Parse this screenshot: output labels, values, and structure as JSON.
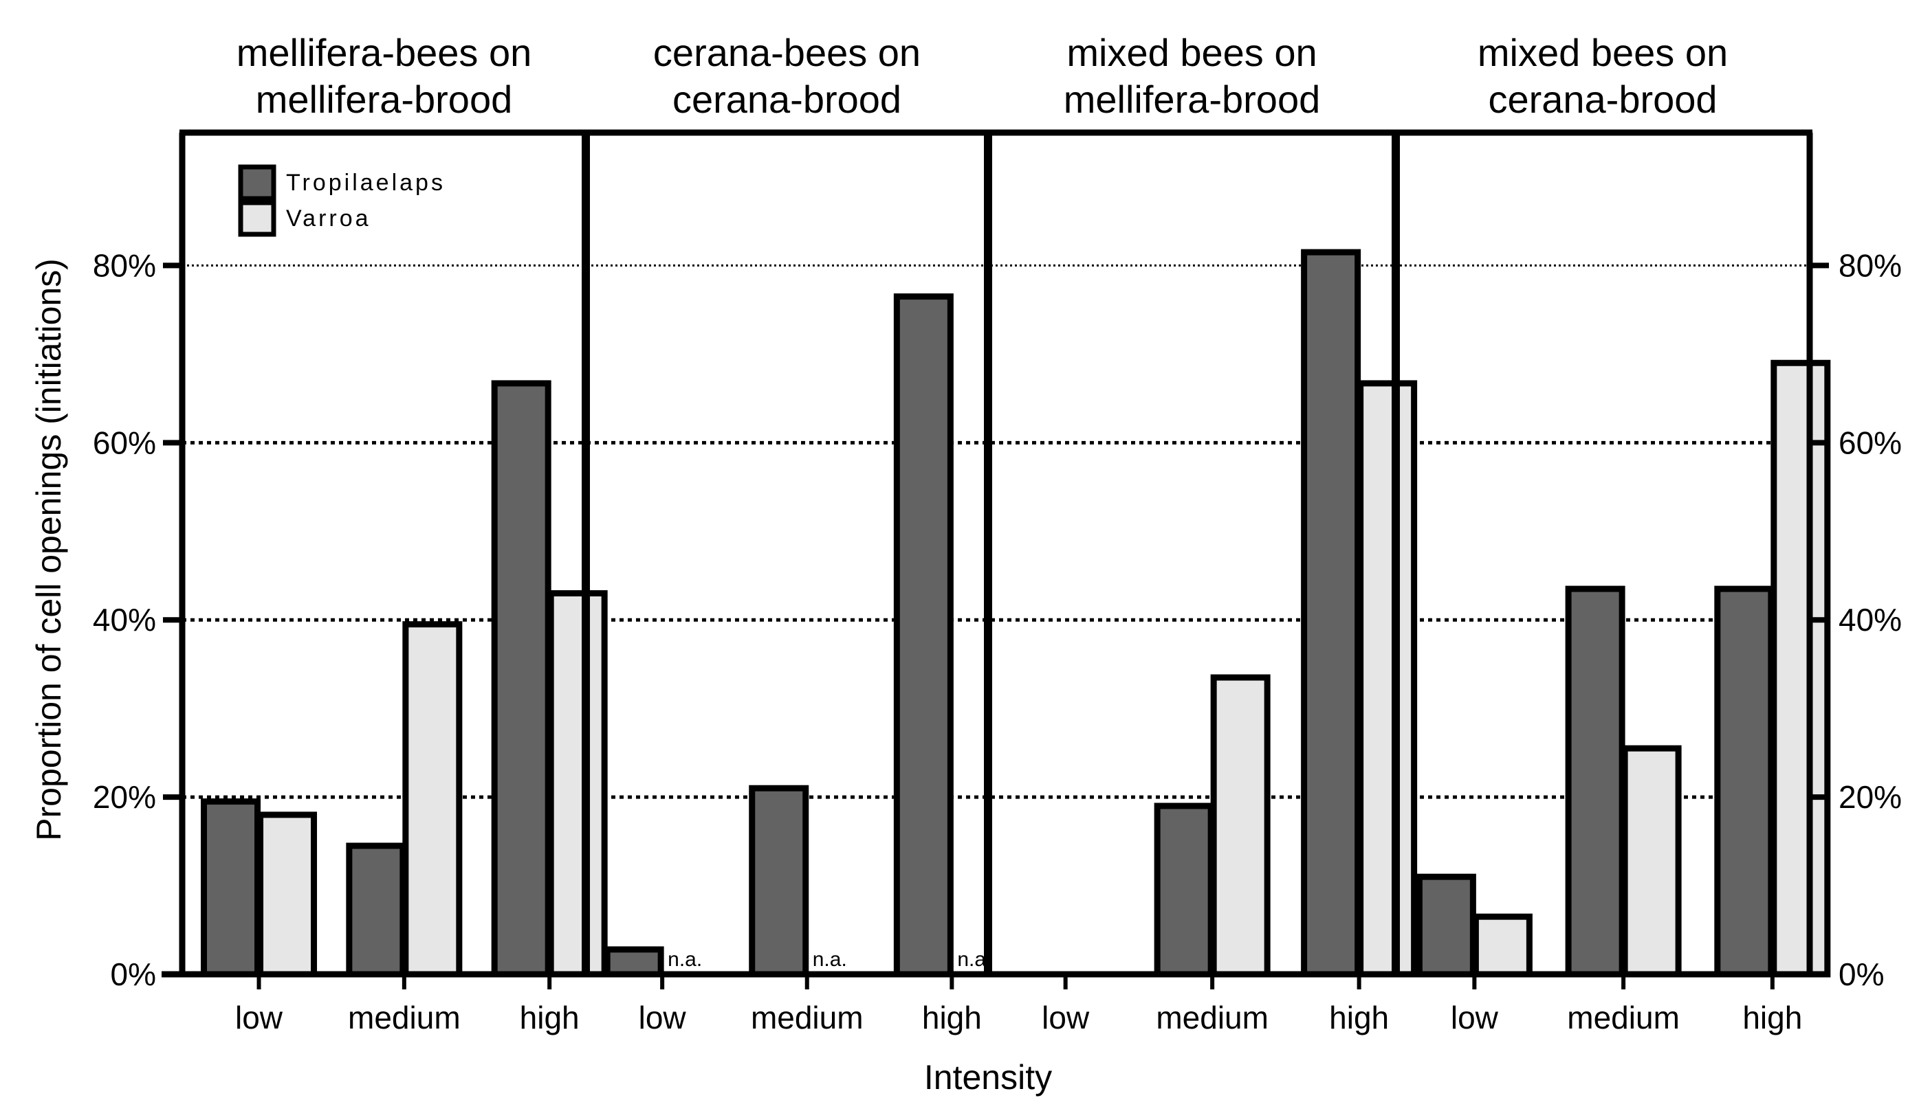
{
  "chart_data": {
    "type": "bar",
    "ylabel": "Proportion of cell openings (initiations)",
    "xlabel": "Intensity",
    "ylim": [
      0,
      95
    ],
    "yticks": [
      0,
      20,
      40,
      60,
      80
    ],
    "ytick_labels": [
      "0%",
      "20%",
      "40%",
      "60%",
      "80%"
    ],
    "categories": [
      "low",
      "medium",
      "high"
    ],
    "legend": [
      {
        "name": "Tropilaelaps",
        "color": "#636363"
      },
      {
        "name": "Varroa",
        "color": "#e6e6e6"
      }
    ],
    "na_label": "n.a.",
    "panels": [
      {
        "title_lines": [
          "mellifera-bees on",
          "mellifera-brood"
        ],
        "series": [
          {
            "name": "Tropilaelaps",
            "values": [
              19.5,
              14.5,
              66.7
            ]
          },
          {
            "name": "Varroa",
            "values": [
              18.0,
              39.5,
              43.0
            ]
          }
        ]
      },
      {
        "title_lines": [
          "cerana-bees on",
          "cerana-brood"
        ],
        "series": [
          {
            "name": "Tropilaelaps",
            "values": [
              2.8,
              21.0,
              76.5
            ]
          },
          {
            "name": "Varroa",
            "values": [
              null,
              null,
              null
            ]
          }
        ]
      },
      {
        "title_lines": [
          "mixed bees on",
          "mellifera-brood"
        ],
        "series": [
          {
            "name": "Tropilaelaps",
            "values": [
              0,
              19.0,
              81.5
            ]
          },
          {
            "name": "Varroa",
            "values": [
              0,
              33.5,
              66.7
            ]
          }
        ]
      },
      {
        "title_lines": [
          "mixed bees on",
          "cerana-brood"
        ],
        "series": [
          {
            "name": "Tropilaelaps",
            "values": [
              11.0,
              43.5,
              43.5
            ]
          },
          {
            "name": "Varroa",
            "values": [
              6.5,
              25.5,
              69.0
            ]
          }
        ]
      }
    ]
  }
}
